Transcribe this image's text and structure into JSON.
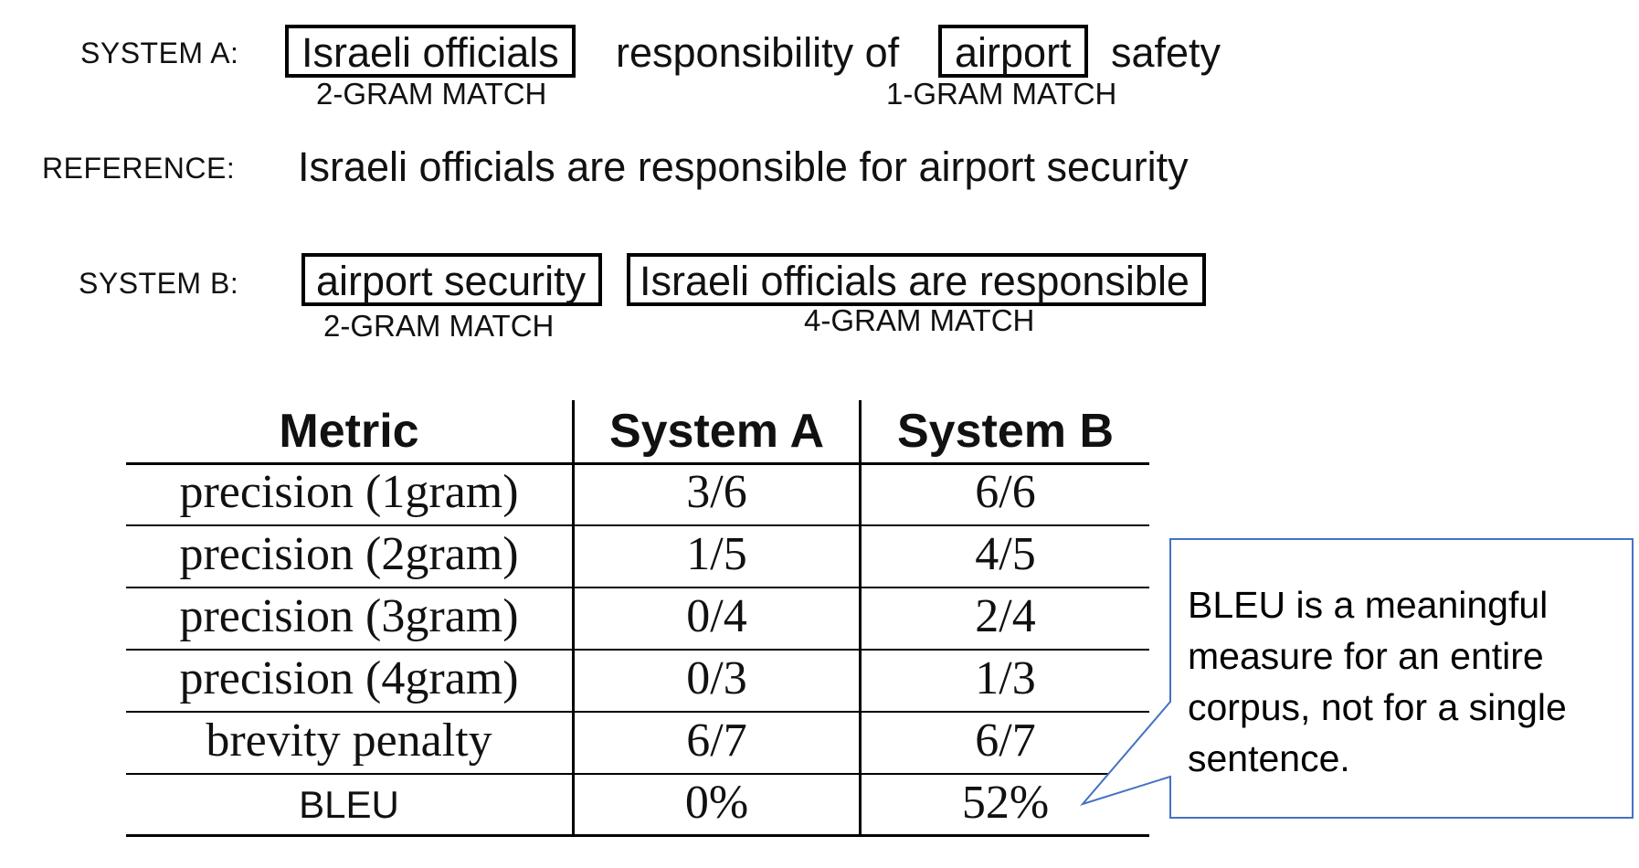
{
  "system_a": {
    "label": "SYSTEM A:",
    "box1": "Israeli officials",
    "mid": "responsibility of",
    "box2": "airport",
    "tail": "safety",
    "match1": "2-GRAM MATCH",
    "match2": "1-GRAM MATCH"
  },
  "reference": {
    "label": "REFERENCE:",
    "text": "Israeli officials are responsible for airport security"
  },
  "system_b": {
    "label": "SYSTEM B:",
    "box1": "airport security",
    "box2": "Israeli officials are responsible",
    "match1": "2-GRAM MATCH",
    "match2": "4-GRAM MATCH"
  },
  "table": {
    "headers": [
      "Metric",
      "System A",
      "System B"
    ],
    "rows": [
      [
        "precision (1gram)",
        "3/6",
        "6/6"
      ],
      [
        "precision (2gram)",
        "1/5",
        "4/5"
      ],
      [
        "precision (3gram)",
        "0/4",
        "2/4"
      ],
      [
        "precision (4gram)",
        "0/3",
        "1/3"
      ],
      [
        "brevity penalty",
        "6/7",
        "6/7"
      ],
      [
        "BLEU",
        "0%",
        "52%"
      ]
    ]
  },
  "callout": {
    "text": "BLEU is a meaningful measure for an entire corpus, not for a single sentence.",
    "border_color": "#4472C4"
  }
}
